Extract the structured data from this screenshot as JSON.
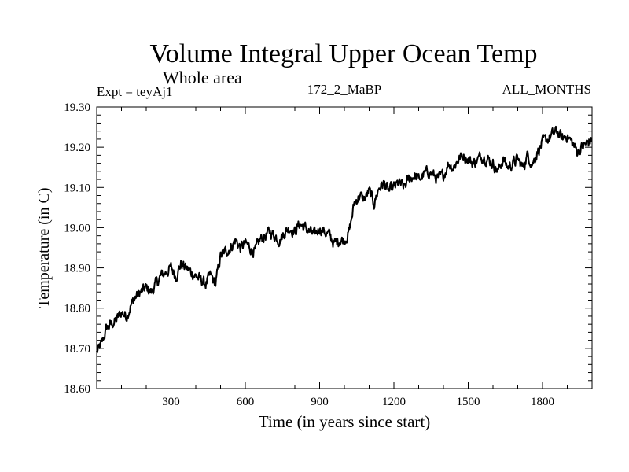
{
  "chart_data": {
    "type": "line",
    "title": "Volume Integral Upper Ocean Temp",
    "subtitle": "Whole area",
    "experiment": "Expt = teyAj1",
    "run_label": "172_2_MaBP",
    "months_label": "ALL_MONTHS",
    "xlabel": "Time (in years since start)",
    "ylabel": "Temperature (in C)",
    "xlim": [
      0,
      2000
    ],
    "ylim": [
      18.6,
      19.3
    ],
    "x_ticks": [
      300,
      600,
      900,
      1200,
      1500,
      1800
    ],
    "x_tick_labels": [
      "300",
      "600",
      "900",
      "1200",
      "1500",
      "1800"
    ],
    "y_ticks": [
      18.6,
      18.7,
      18.8,
      18.9,
      19.0,
      19.1,
      19.2,
      19.3
    ],
    "y_tick_labels": [
      "18.60",
      "18.70",
      "18.80",
      "18.90",
      "19.00",
      "19.10",
      "19.20",
      "19.30"
    ],
    "grid": false,
    "series": [
      {
        "name": "Temperature",
        "color": "#000000",
        "x": [
          0,
          20,
          40,
          60,
          80,
          100,
          120,
          140,
          160,
          180,
          200,
          220,
          240,
          260,
          280,
          300,
          320,
          340,
          360,
          380,
          400,
          420,
          440,
          460,
          480,
          500,
          520,
          540,
          560,
          580,
          600,
          620,
          640,
          660,
          680,
          700,
          720,
          740,
          760,
          780,
          800,
          820,
          840,
          860,
          880,
          900,
          920,
          940,
          960,
          980,
          1000,
          1020,
          1040,
          1060,
          1080,
          1100,
          1120,
          1140,
          1160,
          1180,
          1200,
          1220,
          1240,
          1260,
          1280,
          1300,
          1320,
          1340,
          1360,
          1380,
          1400,
          1420,
          1440,
          1460,
          1480,
          1500,
          1520,
          1540,
          1560,
          1580,
          1600,
          1620,
          1640,
          1660,
          1680,
          1700,
          1720,
          1740,
          1760,
          1780,
          1800,
          1820,
          1840,
          1860,
          1880,
          1900,
          1920,
          1940,
          1960,
          1980,
          2000
        ],
        "values": [
          18.69,
          18.71,
          18.75,
          18.76,
          18.77,
          18.79,
          18.78,
          18.81,
          18.83,
          18.84,
          18.85,
          18.84,
          18.86,
          18.88,
          18.89,
          18.9,
          18.88,
          18.91,
          18.9,
          18.89,
          18.88,
          18.87,
          18.86,
          18.88,
          18.86,
          18.93,
          18.94,
          18.95,
          18.97,
          18.95,
          18.96,
          18.95,
          18.94,
          18.97,
          18.98,
          18.99,
          18.98,
          18.97,
          18.99,
          19.0,
          18.99,
          19.01,
          19.0,
          18.99,
          18.98,
          19.0,
          18.99,
          18.98,
          18.96,
          18.97,
          18.97,
          18.99,
          19.06,
          19.08,
          19.07,
          19.09,
          19.06,
          19.1,
          19.11,
          19.09,
          19.1,
          19.11,
          19.1,
          19.12,
          19.13,
          19.12,
          19.13,
          19.14,
          19.13,
          19.12,
          19.13,
          19.16,
          19.15,
          19.17,
          19.18,
          19.17,
          19.16,
          19.17,
          19.18,
          19.17,
          19.16,
          19.14,
          19.17,
          19.15,
          19.16,
          19.17,
          19.15,
          19.18,
          19.16,
          19.19,
          19.21,
          19.22,
          19.23,
          19.24,
          19.22,
          19.23,
          19.21,
          19.19,
          19.2,
          19.21,
          19.22
        ]
      }
    ]
  }
}
